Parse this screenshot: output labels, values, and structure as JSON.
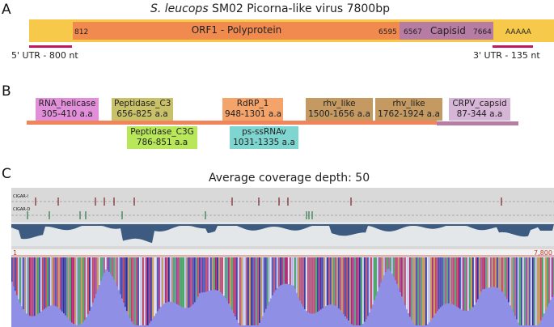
{
  "panel_a": {
    "letter": "A",
    "title_species": "S. leucops",
    "title_rest": " SM02 Picorna-like virus 7800bp",
    "orf1": {
      "label": "ORF1 - Polyprotein",
      "start": "812",
      "end": "6595"
    },
    "capsid": {
      "label": "Capisid",
      "start": "6567",
      "end": "7664"
    },
    "polya": "AAAAA",
    "utr5": "5' UTR - 800 nt",
    "utr3": "3' UTR - 135 nt",
    "colors": {
      "genome": "#f6c94a",
      "orf1": "#f18a4f",
      "capsid": "#b77ca4",
      "utr": "#c2185b"
    }
  },
  "panel_b": {
    "letter": "B",
    "domains": [
      {
        "name": "RNA_helicase",
        "range": "305-410 a.a",
        "color": "#e08fd8"
      },
      {
        "name": "Peptidase_C3",
        "range": "656-825 a.a",
        "color": "#c9c06a"
      },
      {
        "name": "Peptidase_C3G",
        "range": "786-851 a.a",
        "color": "#b8e85a"
      },
      {
        "name": "RdRP_1",
        "range": "948-1301 a.a",
        "color": "#f4a36a"
      },
      {
        "name": "ps-ssRNAv",
        "range": "1031-1335 a.a",
        "color": "#7fd6d0"
      },
      {
        "name": "rhv_like",
        "range": "1500-1656 a.a",
        "color": "#c49a62"
      },
      {
        "name": "rhv_like",
        "range": "1762-1924 a.a",
        "color": "#c49a62"
      },
      {
        "name": "CRPV_capsid",
        "range": "87-344 a.a",
        "color": "#d7b5d6"
      }
    ]
  },
  "panel_c": {
    "letter": "C",
    "title": "Average coverage depth: 50",
    "track_cigar_i": "CIGAR-I",
    "track_cigar_d": "CIGAR-D",
    "ruler_start": "1",
    "ruler_end": "7,800"
  }
}
